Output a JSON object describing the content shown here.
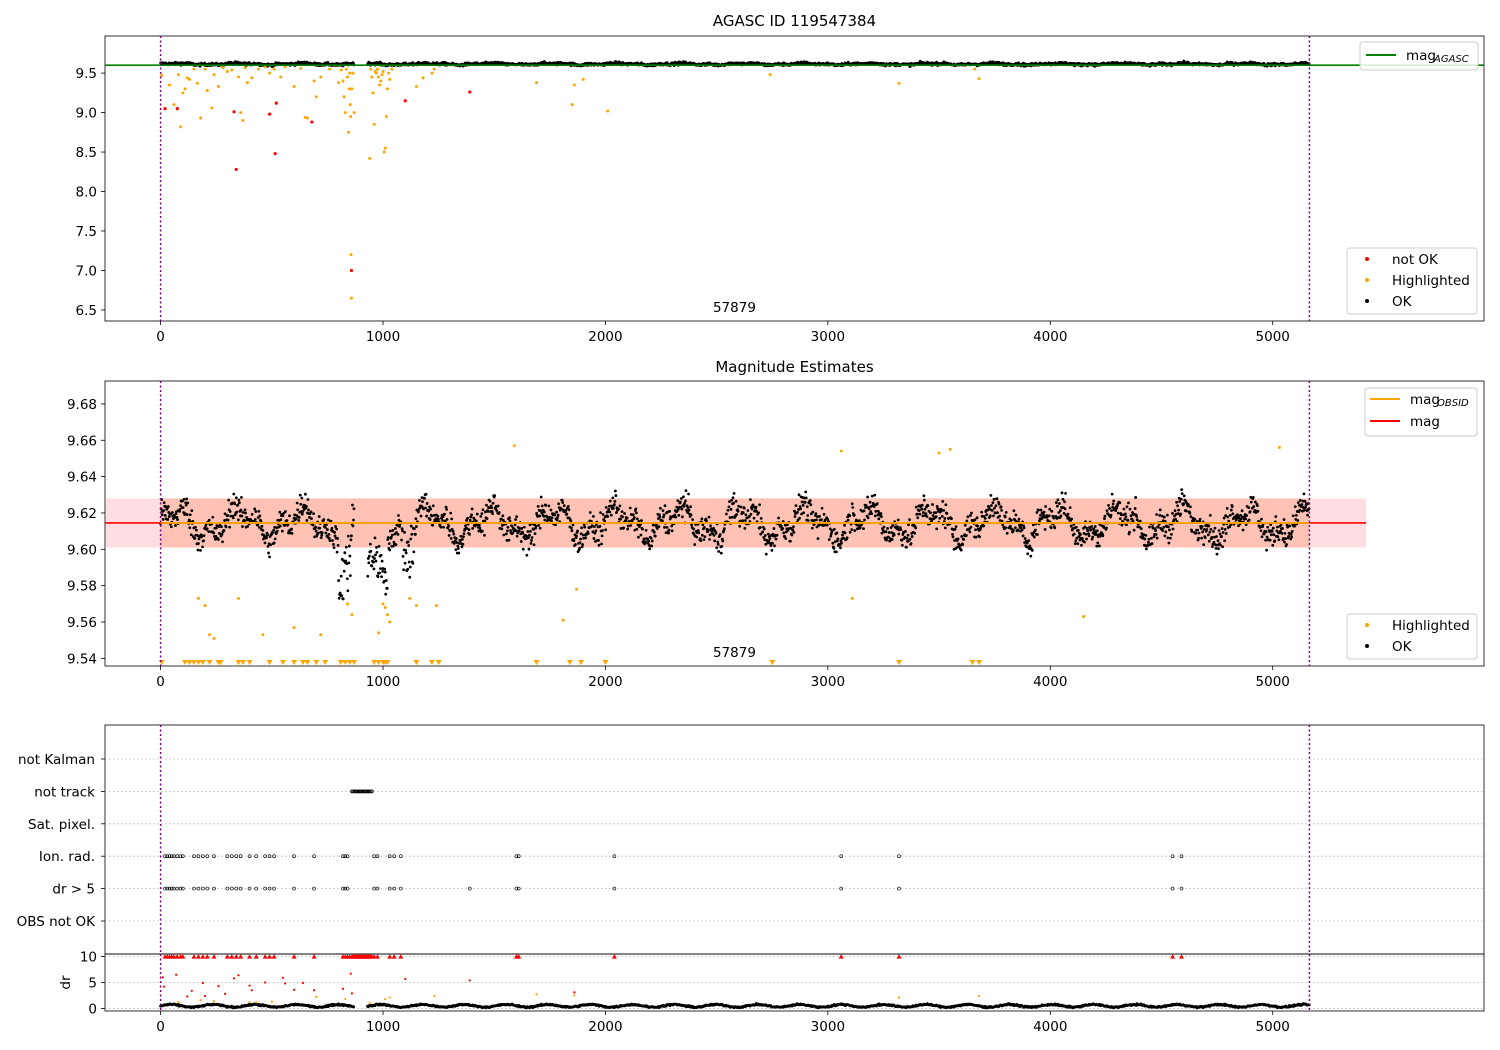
{
  "figure": {
    "colors": {
      "ok": "#000000",
      "highlighted": "#ffa500",
      "not_ok": "#ff0000",
      "agasc": "#008000",
      "obsid": "#ffa500",
      "mag": "#ff0000",
      "obs_marker": "#800080",
      "band_fill": "#ffa07a"
    }
  },
  "chart_data": [
    {
      "type": "scatter",
      "title": "AGASC ID 119547384",
      "xlabel": "",
      "ylabel": "",
      "xlim": [
        -250,
        5950
      ],
      "ylim": [
        6.36,
        9.97
      ],
      "xticks": [
        0,
        1000,
        2000,
        3000,
        4000,
        5000
      ],
      "yticks": [
        6.5,
        7.0,
        7.5,
        8.0,
        8.5,
        9.0,
        9.5
      ],
      "ytick_labels": [
        "6.5",
        "7.0",
        "7.5",
        "8.0",
        "8.5",
        "9.0",
        "9.5"
      ],
      "obs_bounds": [
        0,
        5165
      ],
      "obsid_label": "57879",
      "agasc_mag": 9.6,
      "legends": {
        "top_right": [
          {
            "label": "mag",
            "subscript": "AGASC",
            "style": "line",
            "color": "#008000"
          }
        ],
        "bottom_right": [
          {
            "label": "not OK",
            "style": "dot",
            "color": "#ff0000"
          },
          {
            "label": "Highlighted",
            "style": "dot",
            "color": "#ffa500"
          },
          {
            "label": "OK",
            "style": "dot",
            "color": "#000000"
          }
        ]
      },
      "series": [
        {
          "name": "OK",
          "description": "dense band around the mean magnitude",
          "x_range": [
            0,
            5165
          ],
          "y_center": 9.615,
          "y_spread": 0.04,
          "gap": [
            870,
            930
          ]
        },
        {
          "name": "Highlighted",
          "points": [
            [
              5,
              9.47
            ],
            [
              40,
              9.35
            ],
            [
              60,
              9.1
            ],
            [
              80,
              9.48
            ],
            [
              90,
              8.82
            ],
            [
              100,
              9.25
            ],
            [
              110,
              9.3
            ],
            [
              120,
              9.44
            ],
            [
              130,
              9.42
            ],
            [
              150,
              9.55
            ],
            [
              165,
              9.37
            ],
            [
              180,
              8.93
            ],
            [
              200,
              9.55
            ],
            [
              210,
              9.28
            ],
            [
              230,
              9.06
            ],
            [
              240,
              9.48
            ],
            [
              260,
              9.33
            ],
            [
              280,
              9.57
            ],
            [
              300,
              9.52
            ],
            [
              320,
              9.54
            ],
            [
              350,
              9.45
            ],
            [
              360,
              9.0
            ],
            [
              370,
              8.9
            ],
            [
              380,
              9.57
            ],
            [
              390,
              9.38
            ],
            [
              410,
              9.44
            ],
            [
              440,
              9.55
            ],
            [
              470,
              9.58
            ],
            [
              490,
              9.5
            ],
            [
              510,
              9.55
            ],
            [
              540,
              9.45
            ],
            [
              560,
              9.58
            ],
            [
              600,
              9.33
            ],
            [
              630,
              9.56
            ],
            [
              650,
              8.94
            ],
            [
              660,
              8.93
            ],
            [
              690,
              9.4
            ],
            [
              700,
              9.2
            ],
            [
              720,
              9.45
            ],
            [
              760,
              9.55
            ],
            [
              800,
              9.38
            ],
            [
              812,
              9.54
            ],
            [
              820,
              9.4
            ],
            [
              825,
              9.2
            ],
            [
              830,
              9.0
            ],
            [
              835,
              9.55
            ],
            [
              840,
              9.45
            ],
            [
              845,
              8.75
            ],
            [
              848,
              9.3
            ],
            [
              850,
              9.5
            ],
            [
              852,
              9.1
            ],
            [
              854,
              8.95
            ],
            [
              856,
              7.2
            ],
            [
              858,
              6.65
            ],
            [
              860,
              9.3
            ],
            [
              865,
              9.5
            ],
            [
              870,
              9.0
            ],
            [
              945,
              9.55
            ],
            [
              950,
              9.45
            ],
            [
              955,
              9.25
            ],
            [
              960,
              8.85
            ],
            [
              965,
              9.52
            ],
            [
              970,
              9.5
            ],
            [
              975,
              9.55
            ],
            [
              980,
              9.45
            ],
            [
              985,
              9.35
            ],
            [
              990,
              9.4
            ],
            [
              995,
              9.48
            ],
            [
              1000,
              9.52
            ],
            [
              1005,
              8.5
            ],
            [
              1010,
              8.55
            ],
            [
              1015,
              8.95
            ],
            [
              1020,
              9.3
            ],
            [
              1025,
              9.5
            ],
            [
              1030,
              9.42
            ],
            [
              1040,
              9.55
            ],
            [
              940,
              8.42
            ],
            [
              1150,
              9.33
            ],
            [
              1180,
              9.44
            ],
            [
              1220,
              9.5
            ],
            [
              1230,
              9.55
            ],
            [
              1690,
              9.38
            ],
            [
              1850,
              9.1
            ],
            [
              1860,
              9.35
            ],
            [
              1900,
              9.42
            ],
            [
              2010,
              9.02
            ],
            [
              2740,
              9.48
            ],
            [
              3320,
              9.37
            ],
            [
              3680,
              9.43
            ],
            [
              3660,
              9.55
            ]
          ]
        },
        {
          "name": "not OK",
          "points": [
            [
              20,
              9.05
            ],
            [
              75,
              9.05
            ],
            [
              330,
              9.01
            ],
            [
              340,
              8.28
            ],
            [
              490,
              8.98
            ],
            [
              515,
              8.48
            ],
            [
              520,
              9.12
            ],
            [
              680,
              8.88
            ],
            [
              858,
              7.0
            ],
            [
              1100,
              9.15
            ],
            [
              1390,
              9.26
            ]
          ]
        }
      ]
    },
    {
      "type": "scatter",
      "title": "Magnitude Estimates",
      "xlabel": "",
      "ylabel": "",
      "xlim": [
        -250,
        5950
      ],
      "ylim": [
        9.5358,
        9.6926
      ],
      "xticks": [
        0,
        1000,
        2000,
        3000,
        4000,
        5000
      ],
      "yticks": [
        9.54,
        9.56,
        9.58,
        9.6,
        9.62,
        9.64,
        9.66,
        9.68
      ],
      "ytick_labels": [
        "9.54",
        "9.56",
        "9.58",
        "9.60",
        "9.62",
        "9.64",
        "9.66",
        "9.68"
      ],
      "obs_bounds": [
        0,
        5165
      ],
      "obsid_label": "57879",
      "mag": 9.6145,
      "mag_obsid": 9.6145,
      "band": [
        9.601,
        9.628
      ],
      "legends": {
        "top_right": [
          {
            "label": "mag",
            "subscript": "OBSID",
            "style": "line",
            "color": "#ffa500"
          },
          {
            "label": "mag",
            "subscript": "",
            "style": "line",
            "color": "#ff0000"
          }
        ],
        "bottom_right": [
          {
            "label": "Highlighted",
            "style": "dot",
            "color": "#ffa500"
          },
          {
            "label": "OK",
            "style": "dot",
            "color": "#000000"
          }
        ]
      },
      "series": [
        {
          "name": "OK",
          "description": "dense band with oscillations",
          "x_range": [
            0,
            5165
          ],
          "y_center": 9.6145,
          "y_spread": 0.016,
          "gap": [
            870,
            930
          ]
        },
        {
          "name": "Highlighted",
          "points": [
            [
              170,
              9.573
            ],
            [
              200,
              9.569
            ],
            [
              220,
              9.553
            ],
            [
              240,
              9.551
            ],
            [
              350,
              9.573
            ],
            [
              460,
              9.553
            ],
            [
              600,
              9.557
            ],
            [
              720,
              9.553
            ],
            [
              840,
              9.57
            ],
            [
              860,
              9.564
            ],
            [
              980,
              9.554
            ],
            [
              1000,
              9.57
            ],
            [
              1010,
              9.568
            ],
            [
              1020,
              9.564
            ],
            [
              1030,
              9.56
            ],
            [
              1120,
              9.573
            ],
            [
              1150,
              9.569
            ],
            [
              1240,
              9.569
            ],
            [
              1590,
              9.657
            ],
            [
              1810,
              9.561
            ],
            [
              1870,
              9.578
            ],
            [
              3060,
              9.654
            ],
            [
              3110,
              9.573
            ],
            [
              3500,
              9.653
            ],
            [
              3550,
              9.655
            ],
            [
              4150,
              9.563
            ],
            [
              5030,
              9.656
            ]
          ]
        },
        {
          "name": "Highlighted (below range)",
          "x": [
            5,
            110,
            130,
            150,
            170,
            190,
            220,
            260,
            270,
            350,
            370,
            400,
            490,
            550,
            600,
            640,
            660,
            700,
            740,
            810,
            830,
            850,
            870,
            960,
            980,
            1000,
            1010,
            1020,
            1150,
            1220,
            1250,
            1690,
            1840,
            1890,
            2000,
            2750,
            3320,
            3650,
            3680
          ]
        }
      ]
    },
    {
      "type": "scatter",
      "title": "",
      "xlabel": "",
      "ylabel": "",
      "xlim": [
        -250,
        5950
      ],
      "flag_labels": [
        "not Kalman",
        "not track",
        "Sat. pixel.",
        "Ion. rad.",
        "dr > 5",
        "OBS not OK"
      ],
      "obs_bounds": [
        0,
        5165
      ],
      "flags": {
        "not Kalman": [],
        "not track": [
          860,
          865,
          870,
          875,
          880,
          885,
          890,
          895,
          900,
          905,
          910,
          915,
          920,
          925,
          930,
          935,
          940,
          945,
          950
        ],
        "Sat. pixel.": [],
        "Ion. rad.": [
          20,
          30,
          40,
          50,
          60,
          75,
          90,
          100,
          150,
          170,
          190,
          210,
          240,
          300,
          320,
          340,
          360,
          400,
          430,
          470,
          490,
          510,
          600,
          690,
          820,
          830,
          840,
          960,
          975,
          1030,
          1050,
          1080,
          1600,
          1610,
          2040,
          3060,
          3320,
          4550,
          4590
        ],
        "dr > 5": [
          20,
          30,
          40,
          50,
          60,
          75,
          90,
          100,
          150,
          170,
          190,
          210,
          240,
          300,
          320,
          340,
          360,
          400,
          430,
          470,
          490,
          510,
          600,
          690,
          820,
          830,
          840,
          960,
          975,
          1030,
          1050,
          1080,
          1390,
          1600,
          1610,
          2040,
          3060,
          3320,
          4550,
          4590
        ],
        "OBS not OK": []
      }
    },
    {
      "type": "scatter",
      "title": "",
      "xlabel": "",
      "ylabel": "dr",
      "xlim": [
        -250,
        5950
      ],
      "ylim": [
        -0.5,
        10.5
      ],
      "yticks": [
        0,
        5,
        10
      ],
      "ytick_labels": [
        "0",
        "5",
        "10"
      ],
      "obs_bounds": [
        0,
        5165
      ],
      "series": [
        {
          "name": "OK",
          "description": "dr values near zero",
          "x_range": [
            0,
            5165
          ],
          "y_center": 0.5,
          "y_spread": 0.35,
          "gap": [
            870,
            930
          ]
        },
        {
          "name": "not OK capped",
          "x": [
            20,
            30,
            40,
            50,
            60,
            75,
            90,
            100,
            150,
            170,
            190,
            210,
            240,
            300,
            320,
            340,
            360,
            400,
            430,
            470,
            490,
            510,
            600,
            690,
            820,
            830,
            840,
            850,
            860,
            865,
            870,
            875,
            880,
            885,
            890,
            895,
            900,
            905,
            910,
            915,
            920,
            925,
            930,
            935,
            940,
            945,
            950,
            960,
            975,
            1030,
            1050,
            1080,
            1600,
            1610,
            2040,
            3060,
            3320,
            4550,
            4590
          ],
          "y": 10
        },
        {
          "name": "not OK",
          "points": [
            [
              10,
              6.0
            ],
            [
              15,
              4.2
            ],
            [
              70,
              6.5
            ],
            [
              120,
              2.3
            ],
            [
              140,
              3.4
            ],
            [
              190,
              4.9
            ],
            [
              200,
              2.4
            ],
            [
              260,
              4.3
            ],
            [
              290,
              2.8
            ],
            [
              330,
              5.8
            ],
            [
              350,
              6.4
            ],
            [
              400,
              4.4
            ],
            [
              410,
              3.5
            ],
            [
              470,
              5.0
            ],
            [
              550,
              5.9
            ],
            [
              560,
              4.8
            ],
            [
              600,
              3.6
            ],
            [
              640,
              4.9
            ],
            [
              690,
              3.5
            ],
            [
              820,
              3.8
            ],
            [
              855,
              6.7
            ],
            [
              860,
              2.9
            ],
            [
              1100,
              5.7
            ],
            [
              1390,
              5.4
            ],
            [
              1860,
              3.1
            ]
          ]
        },
        {
          "name": "Highlighted",
          "points": [
            [
              80,
              1.2
            ],
            [
              180,
              1.6
            ],
            [
              240,
              1.4
            ],
            [
              400,
              1.2
            ],
            [
              430,
              1.2
            ],
            [
              500,
              1.3
            ],
            [
              700,
              2.2
            ],
            [
              830,
              1.8
            ],
            [
              940,
              1.1
            ],
            [
              1010,
              1.8
            ],
            [
              1030,
              2.1
            ],
            [
              1230,
              2.4
            ],
            [
              1690,
              2.7
            ],
            [
              1860,
              2.5
            ],
            [
              3320,
              2.1
            ],
            [
              3680,
              2.4
            ]
          ]
        }
      ]
    }
  ]
}
